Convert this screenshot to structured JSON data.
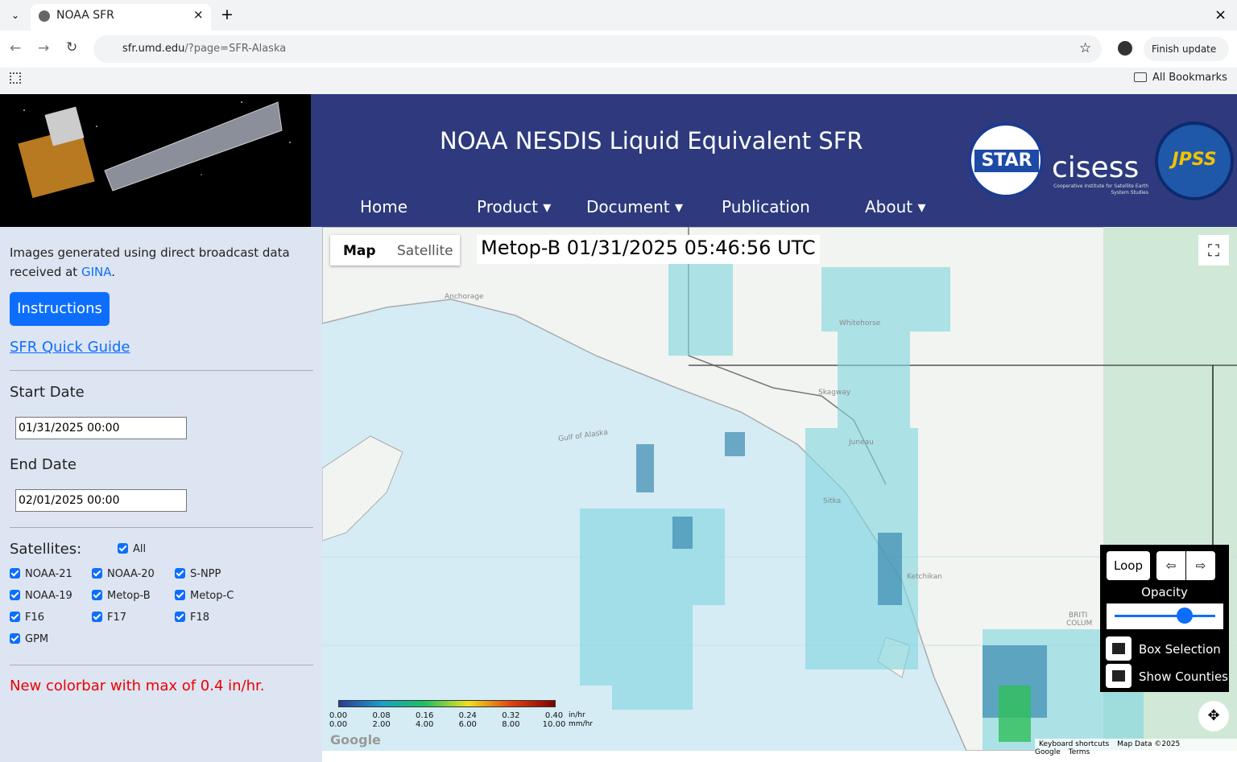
{
  "browser": {
    "tab_title": "NOAA SFR",
    "url_host": "sfr.umd.edu",
    "url_path": "/?page=SFR-Alaska",
    "finish_update": "Finish update",
    "bookmarks": "All Bookmarks"
  },
  "header": {
    "title": "NOAA NESDIS Liquid Equivalent SFR",
    "nav": [
      "Home",
      "Product",
      "Document",
      "Publication",
      "About"
    ],
    "logos": {
      "star": "STAR",
      "cisess": "cisess",
      "cisess_sub": "Cooperative Institute for Satellite Earth System Studies",
      "jpss": "JPSS"
    }
  },
  "sidebar": {
    "intro": "Images generated using direct broadcast data received at ",
    "intro_link": "GINA",
    "intro_end": ".",
    "instructions": "Instructions",
    "quick_guide": "SFR Quick Guide",
    "start_date_label": "Start Date",
    "start_date": "01/31/2025 00:00",
    "end_date_label": "End Date",
    "end_date": "02/01/2025 00:00",
    "satellites_label": "Satellites:",
    "all": "All",
    "satellites": [
      "NOAA-21",
      "NOAA-20",
      "S-NPP",
      "NOAA-19",
      "Metop-B",
      "Metop-C",
      "F16",
      "F17",
      "F18",
      "GPM"
    ],
    "notice": "New colorbar with max of 0.4 in/hr."
  },
  "map": {
    "type_buttons": [
      "Map",
      "Satellite"
    ],
    "caption": "Metop-B 01/31/2025 05:46:56 UTC",
    "places": [
      "Anchorage",
      "Whitehorse",
      "Gulf of Alaska",
      "Skagway",
      "Juneau",
      "Sitka",
      "Ketchikan",
      "BRITI",
      "COLUM"
    ],
    "colorbar": {
      "in_ticks": [
        "0.00",
        "0.08",
        "0.16",
        "0.24",
        "0.32",
        "0.40"
      ],
      "mm_ticks": [
        "0.00",
        "2.00",
        "4.00",
        "6.00",
        "8.00",
        "10.00"
      ],
      "in_unit": "in/hr",
      "mm_unit": "mm/hr"
    },
    "controls": {
      "loop": "Loop",
      "prev": "⇦",
      "next": "⇨",
      "opacity": "Opacity",
      "box_selection": "Box Selection",
      "show_counties": "Show Counties"
    },
    "footer": {
      "google": "Google",
      "shortcuts": "Keyboard shortcuts",
      "map_data": "Map Data ©2025 Google",
      "terms": "Terms"
    }
  }
}
